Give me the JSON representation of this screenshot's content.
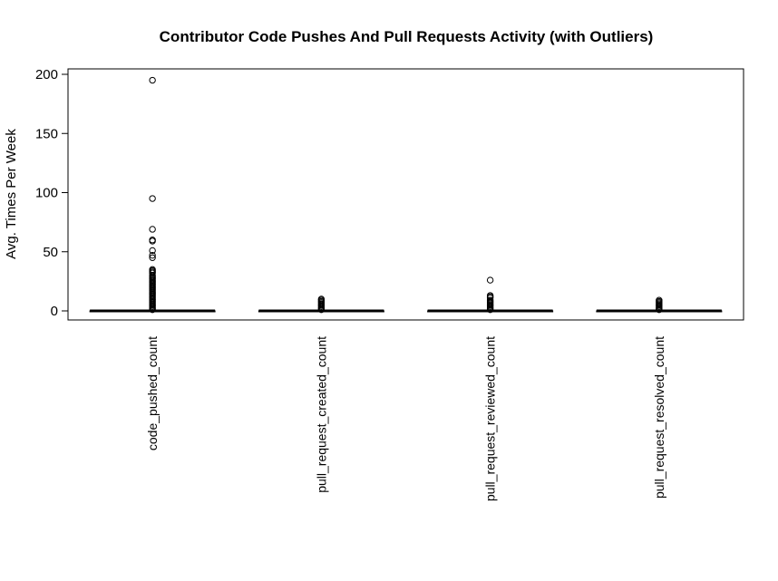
{
  "chart_data": {
    "type": "boxplot",
    "title": "Contributor Code Pushes And Pull Requests Activity (with Outliers)",
    "xlabel": "",
    "ylabel": "Avg. Times Per Week",
    "ylim": [
      -8,
      203
    ],
    "y_ticks": [
      0,
      50,
      100,
      150,
      200
    ],
    "grid": false,
    "legend": "none",
    "categories": [
      "code_pushed_count",
      "pull_request_created_count",
      "pull_request_reviewed_count",
      "pull_request_resolved_count"
    ],
    "series": [
      {
        "category": "code_pushed_count",
        "q1": 0,
        "median": 0,
        "q3": 0,
        "whisker_low": 0,
        "whisker_high": 0,
        "outliers": [
          195,
          95,
          69,
          60,
          59,
          51,
          47,
          45,
          35,
          34,
          33,
          32,
          30,
          29,
          28,
          27,
          26,
          25,
          24,
          23,
          22,
          21,
          20,
          19,
          18,
          17,
          16,
          15,
          14,
          13,
          12,
          11,
          10,
          9,
          8,
          7,
          6,
          5,
          4,
          3,
          2,
          1
        ]
      },
      {
        "category": "pull_request_created_count",
        "q1": 0,
        "median": 0,
        "q3": 0,
        "whisker_low": 0,
        "whisker_high": 0,
        "outliers": [
          10,
          9,
          8,
          7,
          6,
          5,
          4,
          3,
          2,
          1
        ]
      },
      {
        "category": "pull_request_reviewed_count",
        "q1": 0,
        "median": 0,
        "q3": 0,
        "whisker_low": 0,
        "whisker_high": 0,
        "outliers": [
          26,
          13,
          12,
          11,
          9,
          8,
          7,
          6,
          5,
          4,
          3,
          2,
          1
        ]
      },
      {
        "category": "pull_request_resolved_count",
        "q1": 0,
        "median": 0,
        "q3": 0,
        "whisker_low": 0,
        "whisker_high": 0,
        "outliers": [
          9,
          8,
          7,
          6,
          5,
          4,
          3,
          2,
          1
        ]
      }
    ]
  }
}
